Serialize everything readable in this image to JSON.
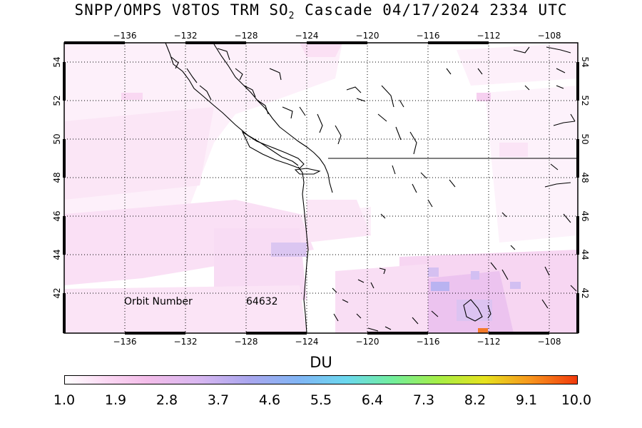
{
  "title": {
    "main": "SNPP/OMPS V8TOS TRM SO",
    "sub": "2",
    "rest": " Cascade 04/17/2024 2334 UTC"
  },
  "map": {
    "lon_range": [
      -140,
      -106
    ],
    "lat_range": [
      40,
      55
    ],
    "lon_ticks": [
      -136,
      -132,
      -128,
      -124,
      -120,
      -116,
      -112,
      -108
    ],
    "lat_ticks": [
      42,
      44,
      46,
      48,
      50,
      52,
      54
    ],
    "grid": true
  },
  "annotation": {
    "orbit_label": "Orbit Number",
    "orbit_value": "64632"
  },
  "colorbar": {
    "unit": "DU",
    "labels": [
      "1.0",
      "1.9",
      "2.8",
      "3.7",
      "4.6",
      "5.5",
      "6.4",
      "7.3",
      "8.2",
      "9.1",
      "10.0"
    ],
    "colors": {
      "low": "#ffffff",
      "mid": "#80b6f5",
      "high": "#f23a0c"
    }
  }
}
